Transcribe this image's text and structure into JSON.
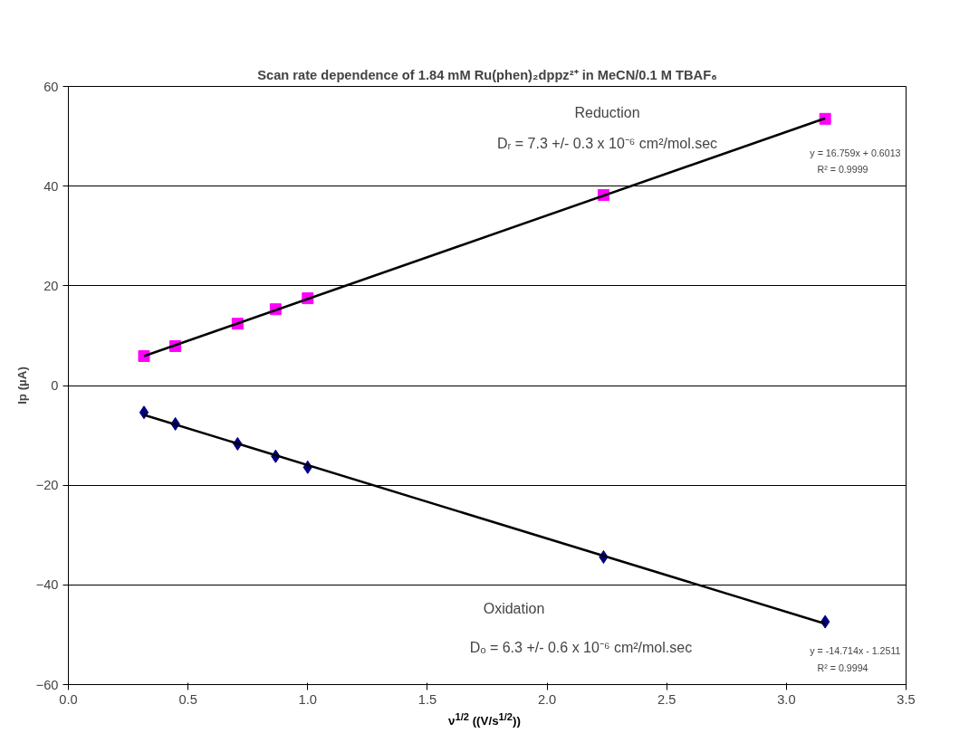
{
  "chart_data": {
    "type": "scatter",
    "title": "Scan rate dependence of 1.84 mM Ru(phen)₂dppz²⁺ in MeCN/0.1 M TBAF₆",
    "xlabel": "ν$^{1/2}$ ((V/s$^{1/2}$))",
    "ylabel": "Ip (µA)",
    "xlim": [
      0,
      3.5
    ],
    "ylim": [
      -60,
      60
    ],
    "xticks": [
      {
        "value": 0,
        "label": "0.0"
      },
      {
        "value": 0.5,
        "label": "0.5"
      },
      {
        "value": 1,
        "label": "1.0"
      },
      {
        "value": 1.5,
        "label": "1.5"
      },
      {
        "value": 2,
        "label": "2.0"
      },
      {
        "value": 2.5,
        "label": "2.5"
      },
      {
        "value": 3,
        "label": "3.0"
      },
      {
        "value": 3.5,
        "label": "3.5"
      }
    ],
    "yticks": [
      -60,
      -40,
      -20,
      0,
      20,
      40,
      60
    ],
    "grid": "y",
    "series": [
      {
        "marker": "square",
        "color": "#ff00ff",
        "x": [
          0.316,
          0.447,
          0.707,
          0.866,
          1.0,
          2.236,
          3.162
        ],
        "values": [
          5.9,
          7.9,
          12.4,
          15.3,
          17.5,
          38.2,
          53.5
        ]
      },
      {
        "marker": "diamond",
        "color": "#000080",
        "x": [
          0.316,
          0.447,
          0.707,
          0.866,
          1.0,
          2.236,
          3.162
        ],
        "values": [
          -5.4,
          -7.7,
          -11.7,
          -14.2,
          -16.4,
          -34.4,
          -47.4
        ]
      },
      {
        "type": "line",
        "color": "#000000",
        "x": [
          0.316,
          3.162
        ],
        "values": [
          5.9,
          53.6
        ]
      },
      {
        "type": "line",
        "color": "#000000",
        "x": [
          0.316,
          3.162
        ],
        "values": [
          -5.9,
          -47.8
        ]
      }
    ],
    "annotations": [
      "Reduction",
      "Dᵣ = 7.3 +/- 0.3 x 10⁻⁶ cm²/mol.sec",
      "y = 16.759x + 0.6013",
      "R² = 0.9999",
      "Oxidation",
      "Dₒ = 6.3 +/- 0.6 x 10⁻⁶ cm²/mol.sec",
      "y = -14.714x - 1.2511",
      "R² = 0.9994"
    ]
  }
}
